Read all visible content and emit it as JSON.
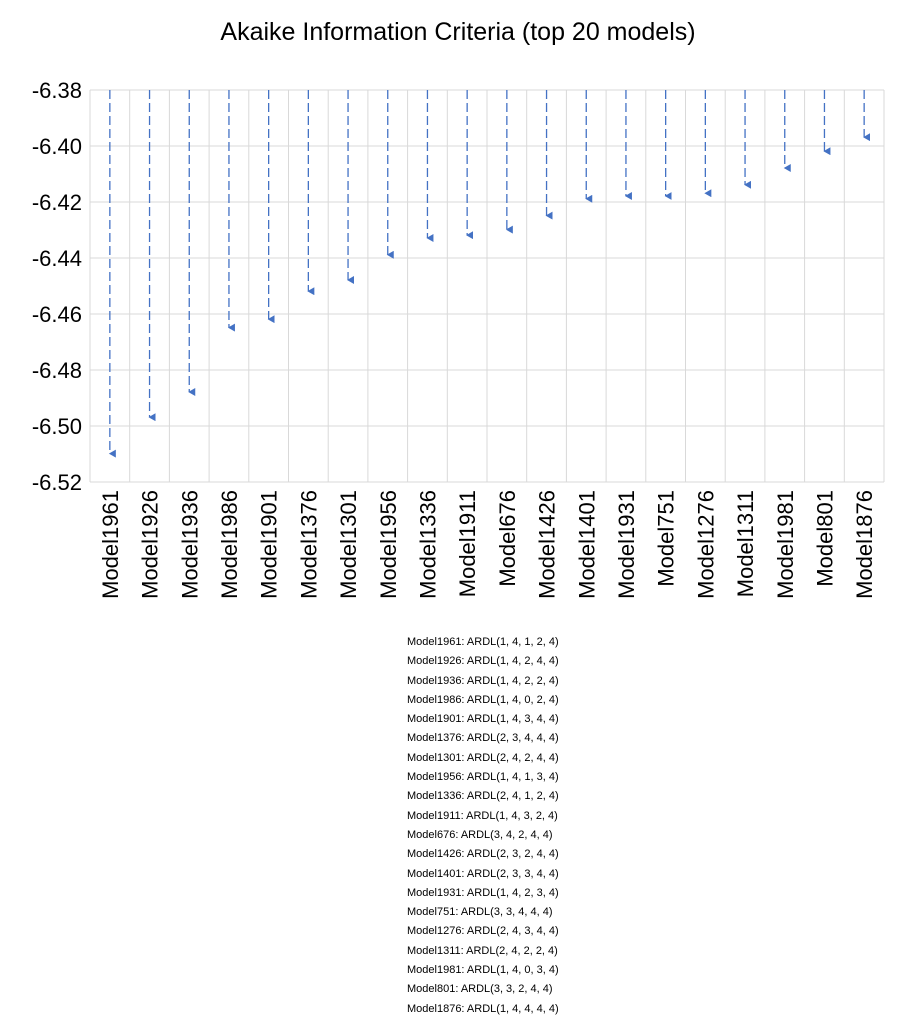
{
  "chart_data": {
    "type": "line",
    "title": "Akaike Information Criteria (top 20 models)",
    "xlabel": "",
    "ylabel": "",
    "ylim": [
      -6.52,
      -6.38
    ],
    "yticks": [
      "-6.38",
      "-6.40",
      "-6.42",
      "-6.44",
      "-6.46",
      "-6.48",
      "-6.50",
      "-6.52"
    ],
    "grid": true,
    "categories": [
      "Model1961",
      "Model1926",
      "Model1936",
      "Model1986",
      "Model1901",
      "Model1376",
      "Model1301",
      "Model1956",
      "Model1336",
      "Model1911",
      "Model676",
      "Model1426",
      "Model1401",
      "Model1931",
      "Model751",
      "Model1276",
      "Model1311",
      "Model1981",
      "Model801",
      "Model1876"
    ],
    "values": [
      -6.512,
      -6.499,
      -6.49,
      -6.467,
      -6.464,
      -6.454,
      -6.45,
      -6.441,
      -6.435,
      -6.434,
      -6.432,
      -6.427,
      -6.421,
      -6.42,
      -6.42,
      -6.419,
      -6.416,
      -6.41,
      -6.404,
      -6.399
    ],
    "notes": [
      "Model1961: ARDL(1, 4, 1, 2, 4)",
      "Model1926: ARDL(1, 4, 2, 4, 4)",
      "Model1936: ARDL(1, 4, 2, 2, 4)",
      "Model1986: ARDL(1, 4, 0, 2, 4)",
      "Model1901: ARDL(1, 4, 3, 4, 4)",
      "Model1376: ARDL(2, 3, 4, 4, 4)",
      "Model1301: ARDL(2, 4, 2, 4, 4)",
      "Model1956: ARDL(1, 4, 1, 3, 4)",
      "Model1336: ARDL(2, 4, 1, 2, 4)",
      "Model1911: ARDL(1, 4, 3, 2, 4)",
      "Model676: ARDL(3, 4, 2, 4, 4)",
      "Model1426: ARDL(2, 3, 2, 4, 4)",
      "Model1401: ARDL(2, 3, 3, 4, 4)",
      "Model1931: ARDL(1, 4, 2, 3, 4)",
      "Model751: ARDL(3, 3, 4, 4, 4)",
      "Model1276: ARDL(2, 4, 3, 4, 4)",
      "Model1311: ARDL(2, 4, 2, 2, 4)",
      "Model1981: ARDL(1, 4, 0, 3, 4)",
      "Model801: ARDL(3, 3, 2, 4, 4)",
      "Model1876: ARDL(1, 4, 4, 4, 4)"
    ],
    "colors": {
      "marker": "#4472C4",
      "grid": "#D9D9D9"
    }
  }
}
